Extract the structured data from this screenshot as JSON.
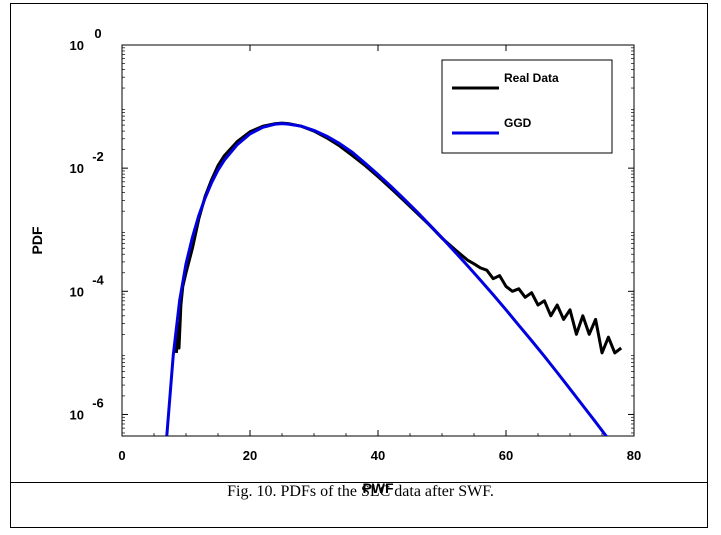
{
  "caption": "Fig. 10.  PDFs of the SLC data after SWF.",
  "chart_data": {
    "type": "line",
    "xlabel": "PWF",
    "ylabel": "PDF",
    "xlim": [
      0,
      80
    ],
    "ylim_log10": [
      -6.35,
      0
    ],
    "yscale": "log",
    "xticks": [
      0,
      20,
      40,
      60,
      80
    ],
    "xtick_labels": [
      "0",
      "20",
      "40",
      "60",
      "80"
    ],
    "yticks_log10": [
      0,
      -2,
      -4,
      -6
    ],
    "ytick_base": "10",
    "ytick_exponents": [
      "0",
      "-2",
      "-4",
      "-6"
    ],
    "legend_position": "top-right",
    "series": [
      {
        "name": "Real Data",
        "color": "#000000",
        "x": [
          8.5,
          8.7,
          8.9,
          9.2,
          9.5,
          10,
          11,
          12,
          13,
          14,
          15,
          16,
          18,
          20,
          22,
          24,
          25,
          26,
          28,
          30,
          32,
          34,
          36,
          38,
          40,
          42,
          44,
          46,
          48,
          50,
          52,
          54,
          55,
          56,
          57,
          58,
          59,
          60,
          61,
          62,
          63,
          64,
          65,
          66,
          67,
          68,
          69,
          70,
          71,
          72,
          73,
          74,
          75,
          76,
          77,
          78
        ],
        "y": [
          1e-05,
          3e-05,
          1.2e-05,
          6e-05,
          0.00012,
          0.0002,
          0.0005,
          0.0015,
          0.0035,
          0.0065,
          0.011,
          0.016,
          0.027,
          0.039,
          0.048,
          0.053,
          0.054,
          0.053,
          0.048,
          0.04,
          0.031,
          0.023,
          0.016,
          0.011,
          0.0073,
          0.0047,
          0.003,
          0.0019,
          0.0012,
          0.00073,
          0.00048,
          0.00032,
          0.00028,
          0.00024,
          0.00022,
          0.00016,
          0.00018,
          0.00012,
          0.0001,
          0.00011,
          8e-05,
          9.5e-05,
          6e-05,
          7e-05,
          4e-05,
          6e-05,
          3.5e-05,
          5e-05,
          2e-05,
          4e-05,
          2e-05,
          3.5e-05,
          1e-05,
          1.8e-05,
          1e-05,
          1.2e-05
        ]
      },
      {
        "name": "GGD",
        "color": "#0000e0",
        "x": [
          7,
          8,
          9,
          10,
          11,
          12,
          13,
          14,
          15,
          16,
          18,
          20,
          22,
          24,
          25,
          26,
          28,
          30,
          32,
          34,
          36,
          38,
          40,
          42,
          44,
          46,
          48,
          50,
          52,
          54,
          56,
          58,
          60,
          62,
          64,
          66,
          68,
          70,
          72,
          74,
          76,
          78,
          80
        ],
        "y": [
          4.5e-07,
          9e-06,
          7e-05,
          0.00028,
          0.00075,
          0.0017,
          0.0033,
          0.0058,
          0.0093,
          0.0135,
          0.024,
          0.036,
          0.046,
          0.052,
          0.053,
          0.052,
          0.048,
          0.041,
          0.033,
          0.025,
          0.018,
          0.012,
          0.0079,
          0.0051,
          0.0032,
          0.002,
          0.00122,
          0.00074,
          0.00044,
          0.00026,
          0.000152,
          8.8e-05,
          5e-05,
          2.8e-05,
          1.58e-05,
          8.8e-06,
          4.8e-06,
          2.6e-06,
          1.4e-06,
          7.5e-07,
          4e-07,
          2.1e-07,
          1.1e-07
        ]
      }
    ]
  }
}
